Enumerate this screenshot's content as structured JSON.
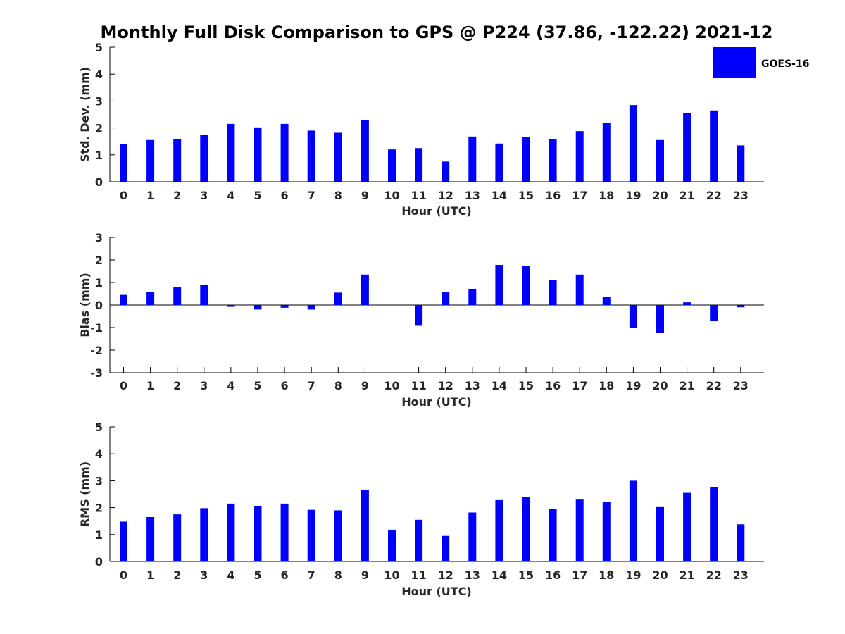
{
  "title": "Monthly Full Disk Comparison to GPS @ P224 (37.86, -122.22) 2021-12",
  "legend": {
    "label": "GOES-16",
    "color": "#0000ff",
    "placement": "top-right"
  },
  "chart_data": [
    {
      "type": "bar",
      "title": "Monthly Full Disk Comparison to GPS @ P224 (37.86, -122.22) 2021-12",
      "xlabel": "Hour (UTC)",
      "ylabel": "Std. Dev. (mm)",
      "ylim": [
        0,
        5
      ],
      "yticks": [
        0,
        1,
        2,
        3,
        4,
        5
      ],
      "grid": false,
      "categories": [
        "0",
        "1",
        "2",
        "3",
        "4",
        "5",
        "6",
        "7",
        "8",
        "9",
        "10",
        "11",
        "12",
        "13",
        "14",
        "15",
        "16",
        "17",
        "18",
        "19",
        "20",
        "21",
        "22",
        "23"
      ],
      "series": [
        {
          "name": "GOES-16",
          "color": "#0000ff",
          "values": [
            1.4,
            1.55,
            1.58,
            1.75,
            2.15,
            2.02,
            2.15,
            1.9,
            1.82,
            2.3,
            1.2,
            1.25,
            0.75,
            1.68,
            1.42,
            1.66,
            1.58,
            1.88,
            2.18,
            2.85,
            1.55,
            2.55,
            2.65,
            1.35
          ]
        }
      ]
    },
    {
      "type": "bar",
      "xlabel": "Hour (UTC)",
      "ylabel": "Bias (mm)",
      "ylim": [
        -3,
        3
      ],
      "yticks": [
        -3,
        -2,
        -1,
        0,
        1,
        2,
        3
      ],
      "grid": false,
      "categories": [
        "0",
        "1",
        "2",
        "3",
        "4",
        "5",
        "6",
        "7",
        "8",
        "9",
        "10",
        "11",
        "12",
        "13",
        "14",
        "15",
        "16",
        "17",
        "18",
        "19",
        "20",
        "21",
        "22",
        "23"
      ],
      "series": [
        {
          "name": "GOES-16",
          "color": "#0000ff",
          "values": [
            0.45,
            0.58,
            0.78,
            0.9,
            -0.08,
            -0.2,
            -0.12,
            -0.2,
            0.55,
            1.35,
            0.0,
            -0.92,
            0.58,
            0.72,
            1.78,
            1.75,
            1.12,
            1.35,
            0.35,
            -1.0,
            -1.25,
            0.12,
            -0.7,
            -0.1
          ]
        }
      ]
    },
    {
      "type": "bar",
      "xlabel": "Hour (UTC)",
      "ylabel": "RMS (mm)",
      "ylim": [
        0,
        5
      ],
      "yticks": [
        0,
        1,
        2,
        3,
        4,
        5
      ],
      "grid": false,
      "categories": [
        "0",
        "1",
        "2",
        "3",
        "4",
        "5",
        "6",
        "7",
        "8",
        "9",
        "10",
        "11",
        "12",
        "13",
        "14",
        "15",
        "16",
        "17",
        "18",
        "19",
        "20",
        "21",
        "22",
        "23"
      ],
      "series": [
        {
          "name": "GOES-16",
          "color": "#0000ff",
          "values": [
            1.48,
            1.65,
            1.75,
            1.98,
            2.15,
            2.05,
            2.15,
            1.92,
            1.9,
            2.65,
            1.18,
            1.55,
            0.95,
            1.82,
            2.28,
            2.4,
            1.95,
            2.3,
            2.22,
            3.0,
            2.02,
            2.55,
            2.75,
            1.38
          ]
        }
      ]
    }
  ]
}
